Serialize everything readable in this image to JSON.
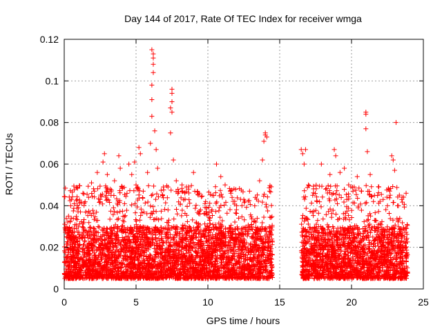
{
  "chart_data": {
    "type": "scatter",
    "title": "Day 144 of 2017, Rate Of TEC Index for receiver wmga",
    "xlabel": "GPS time / hours",
    "ylabel": "ROTI / TECUs",
    "xlim": [
      0,
      25
    ],
    "ylim": [
      0,
      0.12
    ],
    "xticks": [
      0,
      5,
      10,
      15,
      20,
      25
    ],
    "yticks": [
      0,
      0.02,
      0.04,
      0.06,
      0.08,
      0.1,
      0.12
    ],
    "xtick_labels": [
      "0",
      "5",
      "10",
      "15",
      "20",
      "25"
    ],
    "ytick_labels": [
      "0",
      "0.02",
      "0.04",
      "0.06",
      "0.08",
      "0.1",
      "0.12"
    ],
    "grid": true,
    "marker": "+",
    "color": "#ff0000",
    "series": [
      {
        "name": "ROTI",
        "segments": [
          {
            "start": 0.0,
            "end": 14.5,
            "baseline_low": 0.005,
            "baseline_high": 0.03
          },
          {
            "start": 16.5,
            "end": 23.9,
            "baseline_low": 0.005,
            "baseline_high": 0.03
          }
        ],
        "points": [
          [
            0.1,
            0.028
          ],
          [
            0.3,
            0.035
          ],
          [
            0.5,
            0.043
          ],
          [
            0.7,
            0.041
          ],
          [
            0.9,
            0.043
          ],
          [
            1.0,
            0.039
          ],
          [
            1.3,
            0.046
          ],
          [
            1.5,
            0.037
          ],
          [
            1.7,
            0.044
          ],
          [
            1.9,
            0.051
          ],
          [
            2.1,
            0.047
          ],
          [
            2.3,
            0.056
          ],
          [
            2.5,
            0.043
          ],
          [
            2.7,
            0.061
          ],
          [
            2.8,
            0.065
          ],
          [
            3.0,
            0.055
          ],
          [
            3.2,
            0.048
          ],
          [
            3.5,
            0.052
          ],
          [
            3.8,
            0.064
          ],
          [
            3.9,
            0.058
          ],
          [
            4.2,
            0.041
          ],
          [
            4.5,
            0.06
          ],
          [
            4.7,
            0.055
          ],
          [
            4.9,
            0.061
          ],
          [
            5.0,
            0.05
          ],
          [
            5.2,
            0.068
          ],
          [
            5.3,
            0.065
          ],
          [
            5.5,
            0.047
          ],
          [
            5.8,
            0.056
          ],
          [
            6.0,
            0.07
          ],
          [
            6.1,
            0.083
          ],
          [
            6.1,
            0.091
          ],
          [
            6.1,
            0.098
          ],
          [
            6.2,
            0.104
          ],
          [
            6.2,
            0.108
          ],
          [
            6.2,
            0.111
          ],
          [
            6.1,
            0.115
          ],
          [
            6.2,
            0.113
          ],
          [
            6.3,
            0.076
          ],
          [
            6.4,
            0.067
          ],
          [
            6.5,
            0.058
          ],
          [
            6.9,
            0.049
          ],
          [
            7.4,
            0.075
          ],
          [
            7.4,
            0.087
          ],
          [
            7.5,
            0.09
          ],
          [
            7.5,
            0.094
          ],
          [
            7.5,
            0.096
          ],
          [
            7.5,
            0.085
          ],
          [
            7.6,
            0.062
          ],
          [
            7.8,
            0.052
          ],
          [
            8.2,
            0.05
          ],
          [
            8.5,
            0.049
          ],
          [
            9.0,
            0.056
          ],
          [
            9.4,
            0.046
          ],
          [
            9.8,
            0.041
          ],
          [
            10.3,
            0.045
          ],
          [
            10.6,
            0.06
          ],
          [
            10.9,
            0.054
          ],
          [
            11.2,
            0.05
          ],
          [
            11.6,
            0.046
          ],
          [
            12.0,
            0.04
          ],
          [
            12.5,
            0.043
          ],
          [
            12.9,
            0.047
          ],
          [
            13.3,
            0.044
          ],
          [
            13.6,
            0.052
          ],
          [
            13.8,
            0.062
          ],
          [
            13.9,
            0.071
          ],
          [
            14.0,
            0.074
          ],
          [
            14.0,
            0.075
          ],
          [
            14.1,
            0.073
          ],
          [
            14.3,
            0.047
          ],
          [
            16.5,
            0.067
          ],
          [
            16.6,
            0.065
          ],
          [
            16.7,
            0.06
          ],
          [
            16.8,
            0.067
          ],
          [
            17.0,
            0.05
          ],
          [
            17.3,
            0.045
          ],
          [
            17.6,
            0.042
          ],
          [
            17.9,
            0.06
          ],
          [
            18.2,
            0.048
          ],
          [
            18.5,
            0.055
          ],
          [
            18.8,
            0.067
          ],
          [
            18.9,
            0.064
          ],
          [
            19.2,
            0.056
          ],
          [
            19.5,
            0.058
          ],
          [
            19.8,
            0.05
          ],
          [
            20.1,
            0.047
          ],
          [
            20.4,
            0.054
          ],
          [
            20.7,
            0.047
          ],
          [
            21.0,
            0.085
          ],
          [
            21.0,
            0.084
          ],
          [
            21.0,
            0.077
          ],
          [
            21.1,
            0.066
          ],
          [
            21.3,
            0.055
          ],
          [
            21.6,
            0.045
          ],
          [
            21.9,
            0.049
          ],
          [
            22.2,
            0.043
          ],
          [
            22.5,
            0.04
          ],
          [
            22.8,
            0.064
          ],
          [
            22.9,
            0.062
          ],
          [
            23.0,
            0.057
          ],
          [
            23.1,
            0.08
          ],
          [
            23.2,
            0.04
          ],
          [
            23.5,
            0.043
          ],
          [
            23.8,
            0.046
          ]
        ]
      }
    ]
  }
}
